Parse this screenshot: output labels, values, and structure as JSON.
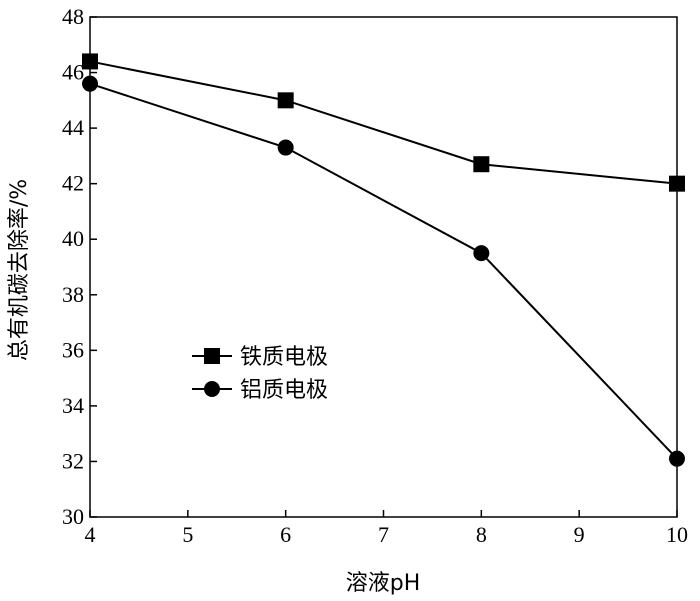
{
  "chart_data": {
    "type": "line",
    "xlabel": "溶液pH",
    "ylabel": "总有机碳去除率/%",
    "xlim": [
      4,
      10
    ],
    "ylim": [
      30,
      48
    ],
    "xticks": [
      "4",
      "5",
      "6",
      "7",
      "8",
      "9",
      "10"
    ],
    "yticks": [
      "30",
      "32",
      "34",
      "36",
      "38",
      "40",
      "42",
      "44",
      "46",
      "48"
    ],
    "grid": false,
    "legend_position": "left-middle",
    "x": [
      4,
      6,
      8,
      10
    ],
    "series": [
      {
        "name": "铁质电极",
        "marker": "square",
        "values": [
          46.4,
          45.0,
          42.7,
          42.0
        ]
      },
      {
        "name": "铝质电极",
        "marker": "circle",
        "values": [
          45.6,
          43.3,
          39.5,
          32.1
        ]
      }
    ]
  }
}
